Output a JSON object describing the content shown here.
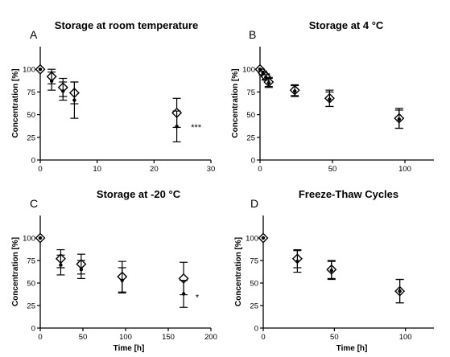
{
  "chart_data": [
    {
      "type": "scatter",
      "panel_letter": "A",
      "title": "Storage at room temperature",
      "xlabel": "",
      "ylabel": "Concentration [%]",
      "xlim": [
        0,
        30
      ],
      "ylim": [
        0,
        125
      ],
      "xticks": [
        0,
        10,
        20,
        30
      ],
      "yticks": [
        0,
        25,
        50,
        75,
        100
      ],
      "grid": false,
      "series": [
        {
          "marker": "diamond-open",
          "points": [
            {
              "x": 0,
              "y": 100,
              "err": 0
            },
            {
              "x": 2,
              "y": 92,
              "err": 8
            },
            {
              "x": 4,
              "y": 80,
              "err": 10
            },
            {
              "x": 6,
              "y": 74,
              "err": 12
            },
            {
              "x": 24,
              "y": 52,
              "err": 16
            }
          ]
        },
        {
          "marker": "dot-filled",
          "points": [
            {
              "x": 0,
              "y": 100,
              "err": 0
            },
            {
              "x": 2,
              "y": 87,
              "err": 10
            },
            {
              "x": 4,
              "y": 76,
              "err": 10
            },
            {
              "x": 6,
              "y": 66,
              "err": 20
            },
            {
              "x": 24,
              "y": 37,
              "err": 17
            }
          ]
        }
      ],
      "annotations": [
        {
          "text": "***",
          "x": 26.5,
          "y": 33
        }
      ]
    },
    {
      "type": "scatter",
      "panel_letter": "B",
      "title": "Storage at 4 °C",
      "xlabel": "",
      "ylabel": "Concentration [%]",
      "xlim": [
        0,
        120
      ],
      "ylim": [
        0,
        125
      ],
      "xticks": [
        0,
        50,
        100
      ],
      "yticks": [
        0,
        25,
        50,
        75,
        100
      ],
      "grid": false,
      "series": [
        {
          "marker": "diamond-open",
          "points": [
            {
              "x": 0,
              "y": 100,
              "err": 0
            },
            {
              "x": 2,
              "y": 96,
              "err": 2
            },
            {
              "x": 4,
              "y": 92,
              "err": 3
            },
            {
              "x": 6,
              "y": 86,
              "err": 5
            },
            {
              "x": 24,
              "y": 77,
              "err": 6
            },
            {
              "x": 48,
              "y": 68,
              "err": 9
            },
            {
              "x": 96,
              "y": 46,
              "err": 11
            }
          ]
        },
        {
          "marker": "dot-filled",
          "points": [
            {
              "x": 0,
              "y": 100,
              "err": 0
            },
            {
              "x": 2,
              "y": 96,
              "err": 2
            },
            {
              "x": 4,
              "y": 91,
              "err": 3
            },
            {
              "x": 6,
              "y": 85,
              "err": 5
            },
            {
              "x": 24,
              "y": 76,
              "err": 6
            },
            {
              "x": 48,
              "y": 67,
              "err": 8
            },
            {
              "x": 96,
              "y": 45,
              "err": 10
            }
          ]
        }
      ],
      "annotations": []
    },
    {
      "type": "scatter",
      "panel_letter": "C",
      "title": "Storage at -20 °C",
      "xlabel": "Time [h]",
      "ylabel": "Concentration [%]",
      "xlim": [
        0,
        200
      ],
      "ylim": [
        0,
        125
      ],
      "xticks": [
        0,
        50,
        100,
        150,
        200
      ],
      "yticks": [
        0,
        25,
        50,
        75,
        100
      ],
      "grid": false,
      "series": [
        {
          "marker": "diamond-open",
          "points": [
            {
              "x": 0,
              "y": 100,
              "err": 0
            },
            {
              "x": 24,
              "y": 77,
              "err": 10
            },
            {
              "x": 48,
              "y": 71,
              "err": 11
            },
            {
              "x": 96,
              "y": 57,
              "err": 17
            },
            {
              "x": 168,
              "y": 55,
              "err": 18
            }
          ]
        },
        {
          "marker": "dot-filled",
          "points": [
            {
              "x": 0,
              "y": 100,
              "err": 0
            },
            {
              "x": 24,
              "y": 70,
              "err": 11
            },
            {
              "x": 48,
              "y": 65,
              "err": 10
            },
            {
              "x": 96,
              "y": 53,
              "err": 14
            },
            {
              "x": 168,
              "y": 38,
              "err": 15
            }
          ]
        }
      ],
      "annotations": [
        {
          "text": "*",
          "x": 182,
          "y": 31
        }
      ]
    },
    {
      "type": "scatter",
      "panel_letter": "D",
      "title": "Freeze-Thaw Cycles",
      "xlabel": "Time [h]",
      "ylabel": "Concentration [%]",
      "xlim": [
        0,
        120
      ],
      "ylim": [
        0,
        125
      ],
      "xticks": [
        0,
        50,
        100
      ],
      "yticks": [
        0,
        25,
        50,
        75,
        100
      ],
      "grid": false,
      "series": [
        {
          "marker": "diamond-open",
          "points": [
            {
              "x": 0,
              "y": 100,
              "err": 0
            },
            {
              "x": 24,
              "y": 77,
              "err": 10
            },
            {
              "x": 48,
              "y": 65,
              "err": 10
            },
            {
              "x": 96,
              "y": 41,
              "err": 13
            }
          ]
        },
        {
          "marker": "dot-filled",
          "points": [
            {
              "x": 0,
              "y": 100,
              "err": 0
            },
            {
              "x": 24,
              "y": 74,
              "err": 12
            },
            {
              "x": 48,
              "y": 64,
              "err": 10
            },
            {
              "x": 96,
              "y": 41,
              "err": 13
            }
          ]
        }
      ],
      "annotations": []
    }
  ]
}
